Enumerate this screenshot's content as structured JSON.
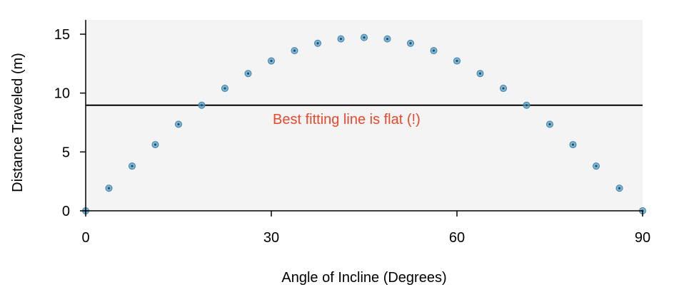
{
  "chart_data": {
    "type": "scatter",
    "xlabel": "Angle of Incline (Degrees)",
    "ylabel": "Distance Traveled (m)",
    "xlim": [
      0,
      90
    ],
    "ylim": [
      0,
      15.5
    ],
    "x_ticks": [
      0,
      30,
      60,
      90
    ],
    "x_tick_labels": [
      "0",
      "30",
      "60",
      "90"
    ],
    "y_ticks": [
      0,
      5,
      10,
      15
    ],
    "y_tick_labels": [
      "0",
      "5",
      "10",
      "15"
    ],
    "grid": false,
    "legend": "none",
    "series": [
      {
        "x": [
          0,
          3.75,
          7.5,
          11.25,
          15,
          18.75,
          22.5,
          26.25,
          30,
          33.75,
          37.5,
          41.25,
          45,
          48.75,
          52.5,
          56.25,
          60,
          63.75,
          67.5,
          71.25,
          75,
          78.75,
          82.5,
          86.25,
          90
        ],
        "y": [
          0,
          1.92,
          3.8,
          5.62,
          7.35,
          8.97,
          10.4,
          11.66,
          12.73,
          13.6,
          14.23,
          14.6,
          14.72,
          14.6,
          14.23,
          13.6,
          12.73,
          11.66,
          10.4,
          8.97,
          7.35,
          5.62,
          3.8,
          1.92,
          0
        ]
      }
    ],
    "fit_line": {
      "y": 8.97
    },
    "annotation": {
      "text": "Best fitting line is flat (!)",
      "x": 30,
      "y": 7.5
    },
    "colors": {
      "panel": "#f4f4f4",
      "point": "#5aa1c7",
      "point_stroke": "#3b7fa8",
      "fit_line": "#000000",
      "annotation": "#e8482c",
      "axis": "#000000"
    }
  }
}
